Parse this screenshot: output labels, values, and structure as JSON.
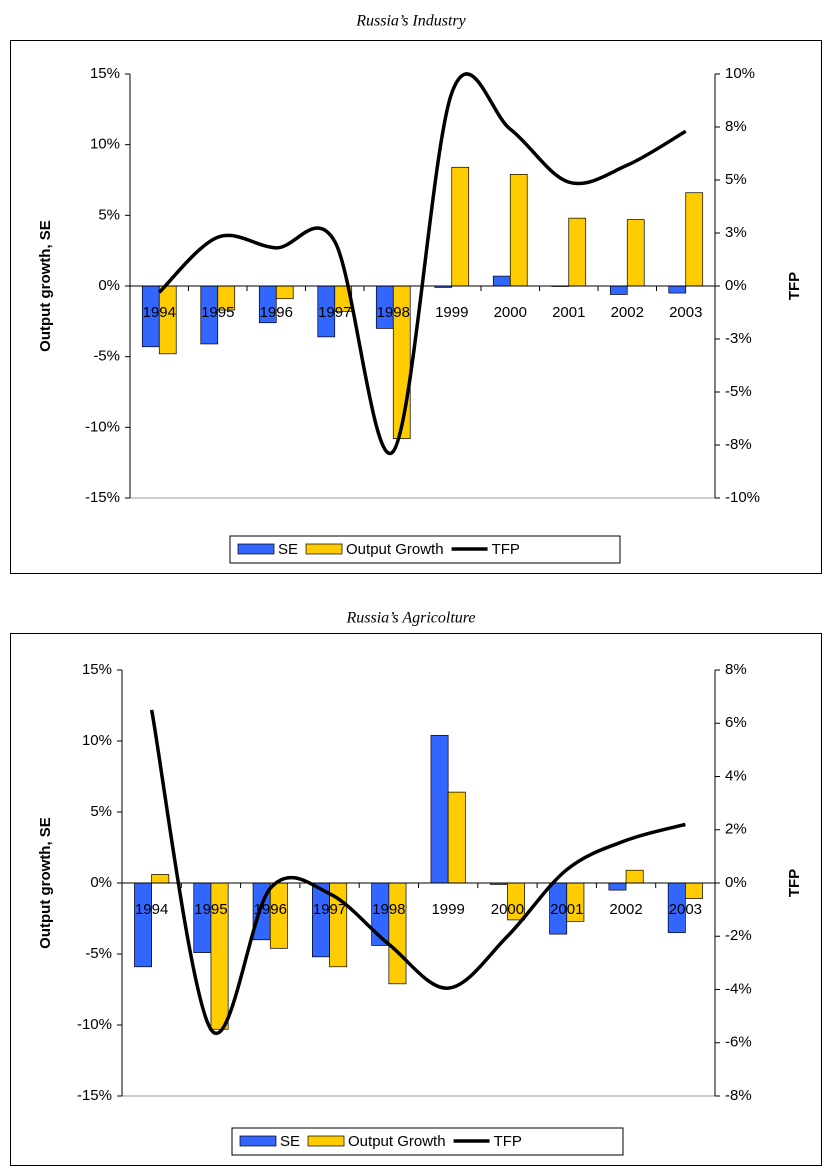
{
  "chart_data": [
    {
      "type": "combo",
      "title": "Russia’s Industry",
      "categories": [
        "1994",
        "1995",
        "1996",
        "1997",
        "1998",
        "1999",
        "2000",
        "2001",
        "2002",
        "2003"
      ],
      "series": [
        {
          "name": "SE",
          "color": "#3366ff",
          "type": "bar",
          "values": [
            -4.3,
            -4.1,
            -2.6,
            -3.6,
            -3.0,
            -0.1,
            0.7,
            0,
            -0.6,
            -0.5
          ]
        },
        {
          "name": "Output Growth",
          "color": "#ffcc00",
          "type": "bar",
          "values": [
            -4.8,
            -1.7,
            -0.9,
            -1.8,
            -10.8,
            8.4,
            7.9,
            4.8,
            4.7,
            6.6
          ]
        },
        {
          "name": "TFP",
          "color": "#000000",
          "type": "line",
          "axis": "y2",
          "values": [
            -0.3,
            2.3,
            1.8,
            2.1,
            -7.8,
            9.1,
            7.4,
            4.9,
            5.7,
            7.3
          ]
        }
      ],
      "ylabel": "Output growth, SE",
      "y2label": "TFP",
      "ylim": [
        -15,
        15
      ],
      "yticks": [
        {
          "value": -15,
          "label": "-15%"
        },
        {
          "value": -10,
          "label": "-10%"
        },
        {
          "value": -5,
          "label": "-5%"
        },
        {
          "value": 0,
          "label": "0%"
        },
        {
          "value": 5,
          "label": "5%"
        },
        {
          "value": 10,
          "label": "10%"
        },
        {
          "value": 15,
          "label": "15%"
        }
      ],
      "y2lim": [
        -10,
        10
      ],
      "y2ticks": [
        {
          "value": -10,
          "label": "-10%"
        },
        {
          "value": -7.5,
          "label": "-8%"
        },
        {
          "value": -5,
          "label": "-5%"
        },
        {
          "value": -2.5,
          "label": "-3%"
        },
        {
          "value": 0,
          "label": "0%"
        },
        {
          "value": 2.5,
          "label": "3%"
        },
        {
          "value": 5,
          "label": "5%"
        },
        {
          "value": 7.5,
          "label": "8%"
        },
        {
          "value": 10,
          "label": "10%"
        }
      ],
      "legend": "bottom"
    },
    {
      "type": "combo",
      "title": "Russia’s Agricolture",
      "categories": [
        "1994",
        "1995",
        "1996",
        "1997",
        "1998",
        "1999",
        "2000",
        "2001",
        "2002",
        "2003"
      ],
      "series": [
        {
          "name": "SE",
          "color": "#3366ff",
          "type": "bar",
          "values": [
            -5.9,
            -4.9,
            -4.0,
            -5.2,
            -4.4,
            10.4,
            -0.1,
            -3.6,
            -0.5,
            -3.5
          ]
        },
        {
          "name": "Output Growth",
          "color": "#ffcc00",
          "type": "bar",
          "values": [
            0.6,
            -10.3,
            -4.6,
            -5.9,
            -7.1,
            6.4,
            -2.6,
            -2.7,
            0.9,
            -1.1
          ]
        },
        {
          "name": "TFP",
          "color": "#000000",
          "type": "line",
          "axis": "y2",
          "values": [
            6.5,
            -5.5,
            -0.2,
            -0.4,
            -2.3,
            -3.95,
            -2.0,
            0.5,
            1.6,
            2.2
          ]
        }
      ],
      "ylabel": "Output growth, SE",
      "y2label": "TFP",
      "ylim": [
        -15,
        15
      ],
      "yticks": [
        {
          "value": -15,
          "label": "-15%"
        },
        {
          "value": -10,
          "label": "-10%"
        },
        {
          "value": -5,
          "label": "-5%"
        },
        {
          "value": 0,
          "label": "0%"
        },
        {
          "value": 5,
          "label": "5%"
        },
        {
          "value": 10,
          "label": "10%"
        },
        {
          "value": 15,
          "label": "15%"
        }
      ],
      "y2lim": [
        -8,
        8
      ],
      "y2ticks": [
        {
          "value": -8,
          "label": "-8%"
        },
        {
          "value": -6,
          "label": "-6%"
        },
        {
          "value": -4,
          "label": "-4%"
        },
        {
          "value": -2,
          "label": "-2%"
        },
        {
          "value": 0,
          "label": "0%"
        },
        {
          "value": 2,
          "label": "2%"
        },
        {
          "value": 4,
          "label": "4%"
        },
        {
          "value": 6,
          "label": "6%"
        },
        {
          "value": 8,
          "label": "8%"
        }
      ],
      "legend": "bottom"
    }
  ]
}
